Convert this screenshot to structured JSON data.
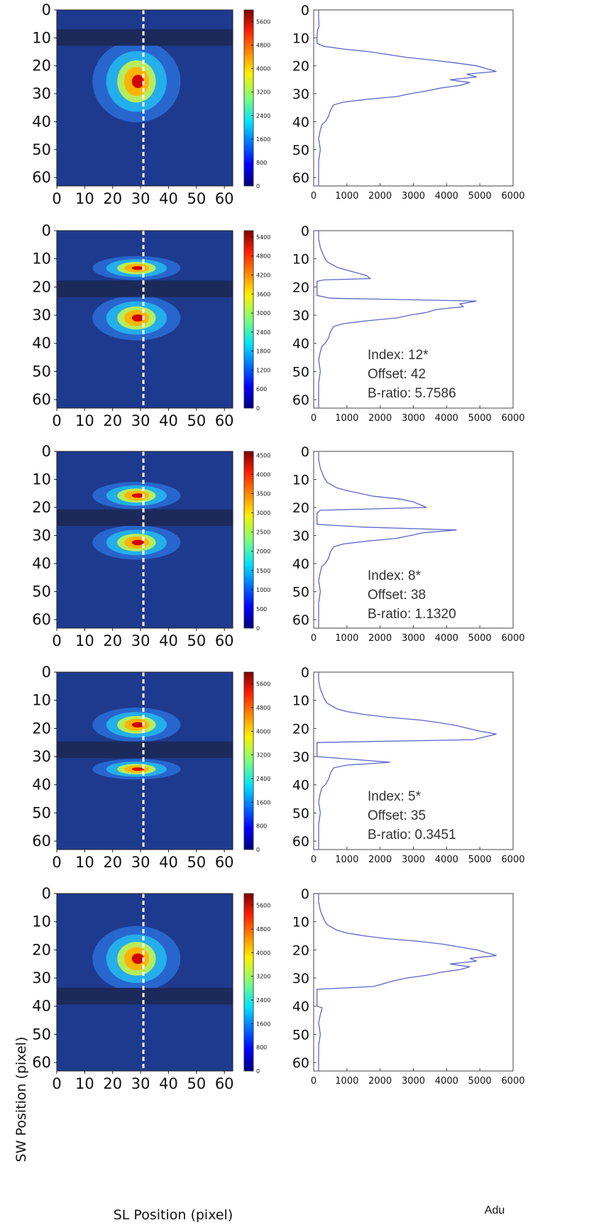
{
  "colors": {
    "background": "#1e3a8e",
    "mask": "#1b2a5a",
    "profile_line": "#5a66c8",
    "dashed_line": "#ffffff"
  },
  "labels": {
    "y_axis": "SW Position (pixel)",
    "x_axis": "SL Position (pixel)",
    "profile_x": "Adu"
  },
  "chart_data": [
    {
      "type": "heatmap",
      "title": "",
      "colormap": "jet",
      "x_range": [
        0,
        63
      ],
      "y_range": [
        0,
        63
      ],
      "x_ticks": [
        "0",
        "10",
        "20",
        "30",
        "40",
        "50",
        "60"
      ],
      "y_ticks": [
        "0",
        "10",
        "20",
        "30",
        "40",
        "50",
        "60"
      ],
      "mask_rows": [
        7,
        13
      ],
      "blob_rows": [
        [
          14,
          38
        ]
      ],
      "dashed_column": 31,
      "colorbar": {
        "max": 6000,
        "ticks": [
          "5600",
          "4800",
          "4000",
          "3200",
          "2400",
          "1600",
          "800",
          "0"
        ]
      },
      "profile": {
        "type": "line",
        "xlim": [
          0,
          6000
        ],
        "x_ticks": [
          "0",
          "1000",
          "2000",
          "3000",
          "4000",
          "5000",
          "6000"
        ],
        "y_ticks": [
          "0",
          "10",
          "20",
          "30",
          "40",
          "50",
          "60"
        ],
        "points": [
          [
            150,
            0
          ],
          [
            150,
            3
          ],
          [
            160,
            6
          ],
          [
            120,
            7
          ],
          [
            110,
            8
          ],
          [
            100,
            10
          ],
          [
            100,
            12
          ],
          [
            300,
            13
          ],
          [
            900,
            14
          ],
          [
            1700,
            15
          ],
          [
            2800,
            17
          ],
          [
            3600,
            18
          ],
          [
            4300,
            19
          ],
          [
            4900,
            20
          ],
          [
            5200,
            21
          ],
          [
            5500,
            22
          ],
          [
            4600,
            23
          ],
          [
            4900,
            24
          ],
          [
            4100,
            25
          ],
          [
            4700,
            26
          ],
          [
            4400,
            27
          ],
          [
            3800,
            28
          ],
          [
            3400,
            29
          ],
          [
            2900,
            30
          ],
          [
            2500,
            31
          ],
          [
            1600,
            32
          ],
          [
            900,
            33
          ],
          [
            600,
            34
          ],
          [
            500,
            36
          ],
          [
            450,
            38
          ],
          [
            350,
            40
          ],
          [
            250,
            41
          ],
          [
            200,
            43
          ],
          [
            150,
            46
          ],
          [
            200,
            50
          ],
          [
            150,
            54
          ],
          [
            150,
            60
          ],
          [
            150,
            63
          ]
        ],
        "annotations": []
      }
    },
    {
      "type": "heatmap",
      "title": "",
      "colormap": "jet",
      "x_range": [
        0,
        63
      ],
      "y_range": [
        0,
        63
      ],
      "x_ticks": [
        "0",
        "10",
        "20",
        "30",
        "40",
        "50",
        "60"
      ],
      "y_ticks": [
        "0",
        "10",
        "20",
        "30",
        "40",
        "50",
        "60"
      ],
      "mask_rows": [
        18,
        24
      ],
      "blob_rows": [
        [
          10,
          17
        ],
        [
          25,
          38
        ]
      ],
      "dashed_column": 31,
      "colorbar": {
        "max": 5600,
        "ticks": [
          "5400",
          "4800",
          "4200",
          "3600",
          "3000",
          "2400",
          "1800",
          "1200",
          "600",
          "0"
        ]
      },
      "profile": {
        "type": "line",
        "xlim": [
          0,
          6000
        ],
        "x_ticks": [
          "0",
          "1000",
          "2000",
          "3000",
          "4000",
          "5000",
          "6000"
        ],
        "y_ticks": [
          "0",
          "10",
          "20",
          "30",
          "40",
          "50",
          "60"
        ],
        "points": [
          [
            150,
            0
          ],
          [
            150,
            3
          ],
          [
            200,
            6
          ],
          [
            300,
            9
          ],
          [
            400,
            11
          ],
          [
            700,
            13
          ],
          [
            1000,
            14
          ],
          [
            1300,
            15
          ],
          [
            1600,
            16
          ],
          [
            1700,
            17
          ],
          [
            300,
            17.5
          ],
          [
            100,
            18
          ],
          [
            100,
            23
          ],
          [
            500,
            24
          ],
          [
            4900,
            25
          ],
          [
            4400,
            26
          ],
          [
            4500,
            27
          ],
          [
            3700,
            28
          ],
          [
            3400,
            29
          ],
          [
            2900,
            30
          ],
          [
            2500,
            31
          ],
          [
            1600,
            32
          ],
          [
            900,
            33
          ],
          [
            600,
            34
          ],
          [
            500,
            36
          ],
          [
            450,
            38
          ],
          [
            350,
            40
          ],
          [
            250,
            41
          ],
          [
            200,
            43
          ],
          [
            150,
            46
          ],
          [
            200,
            50
          ],
          [
            150,
            54
          ],
          [
            150,
            60
          ],
          [
            150,
            63
          ]
        ],
        "annotations": [
          "Index: 12*",
          "Offset: 42",
          "B-ratio: 5.7586"
        ]
      }
    },
    {
      "type": "heatmap",
      "title": "",
      "colormap": "jet",
      "x_range": [
        0,
        63
      ],
      "y_range": [
        0,
        63
      ],
      "x_ticks": [
        "0",
        "10",
        "20",
        "30",
        "40",
        "50",
        "60"
      ],
      "y_ticks": [
        "0",
        "10",
        "20",
        "30",
        "40",
        "50",
        "60"
      ],
      "mask_rows": [
        21,
        27
      ],
      "blob_rows": [
        [
          12,
          20
        ],
        [
          28,
          38
        ]
      ],
      "dashed_column": 31,
      "colorbar": {
        "max": 4600,
        "ticks": [
          "4500",
          "4000",
          "3500",
          "3000",
          "2500",
          "2000",
          "1500",
          "1000",
          "500",
          "0"
        ]
      },
      "profile": {
        "type": "line",
        "xlim": [
          0,
          6000
        ],
        "x_ticks": [
          "0",
          "1000",
          "2000",
          "3000",
          "4000",
          "5000",
          "6000"
        ],
        "y_ticks": [
          "0",
          "10",
          "20",
          "30",
          "40",
          "50",
          "60"
        ],
        "points": [
          [
            150,
            0
          ],
          [
            150,
            3
          ],
          [
            200,
            6
          ],
          [
            300,
            9
          ],
          [
            400,
            11
          ],
          [
            700,
            13
          ],
          [
            1000,
            14
          ],
          [
            1400,
            15
          ],
          [
            1800,
            16
          ],
          [
            2600,
            17
          ],
          [
            3000,
            18
          ],
          [
            3400,
            20
          ],
          [
            200,
            21
          ],
          [
            100,
            22
          ],
          [
            100,
            26
          ],
          [
            1500,
            27
          ],
          [
            4300,
            28
          ],
          [
            3300,
            29
          ],
          [
            2900,
            30
          ],
          [
            2500,
            31
          ],
          [
            1600,
            32
          ],
          [
            900,
            33
          ],
          [
            600,
            34
          ],
          [
            500,
            36
          ],
          [
            450,
            38
          ],
          [
            350,
            40
          ],
          [
            250,
            41
          ],
          [
            200,
            43
          ],
          [
            150,
            46
          ],
          [
            200,
            50
          ],
          [
            150,
            54
          ],
          [
            150,
            60
          ],
          [
            150,
            63
          ]
        ],
        "annotations": [
          "Index: 8*",
          "Offset: 38",
          "B-ratio: 1.1320"
        ]
      }
    },
    {
      "type": "heatmap",
      "title": "",
      "colormap": "jet",
      "x_range": [
        0,
        63
      ],
      "y_range": [
        0,
        63
      ],
      "x_ticks": [
        "0",
        "10",
        "20",
        "30",
        "40",
        "50",
        "60"
      ],
      "y_ticks": [
        "0",
        "10",
        "20",
        "30",
        "40",
        "50",
        "60"
      ],
      "mask_rows": [
        25,
        31
      ],
      "blob_rows": [
        [
          14,
          24
        ],
        [
          32,
          38
        ]
      ],
      "dashed_column": 31,
      "colorbar": {
        "max": 6000,
        "ticks": [
          "5600",
          "4800",
          "4000",
          "3200",
          "2400",
          "1600",
          "800",
          "0"
        ]
      },
      "profile": {
        "type": "line",
        "xlim": [
          0,
          6000
        ],
        "x_ticks": [
          "0",
          "1000",
          "2000",
          "3000",
          "4000",
          "5000",
          "6000"
        ],
        "y_ticks": [
          "0",
          "10",
          "20",
          "30",
          "40",
          "50",
          "60"
        ],
        "points": [
          [
            150,
            0
          ],
          [
            150,
            3
          ],
          [
            200,
            6
          ],
          [
            300,
            9
          ],
          [
            400,
            11
          ],
          [
            700,
            13
          ],
          [
            1000,
            14
          ],
          [
            1500,
            15
          ],
          [
            2200,
            16
          ],
          [
            3200,
            17
          ],
          [
            3800,
            18
          ],
          [
            4300,
            19
          ],
          [
            5000,
            21
          ],
          [
            5500,
            22
          ],
          [
            4800,
            24
          ],
          [
            100,
            25
          ],
          [
            100,
            30
          ],
          [
            1200,
            31
          ],
          [
            2300,
            32
          ],
          [
            1000,
            33
          ],
          [
            600,
            34
          ],
          [
            500,
            36
          ],
          [
            450,
            38
          ],
          [
            350,
            40
          ],
          [
            250,
            41
          ],
          [
            200,
            43
          ],
          [
            150,
            46
          ],
          [
            200,
            50
          ],
          [
            150,
            54
          ],
          [
            150,
            60
          ],
          [
            150,
            63
          ]
        ],
        "annotations": [
          "Index: 5*",
          "Offset: 35",
          "B-ratio: 0.3451"
        ]
      }
    },
    {
      "type": "heatmap",
      "title": "",
      "colormap": "jet",
      "x_range": [
        0,
        63
      ],
      "y_range": [
        0,
        63
      ],
      "x_ticks": [
        "0",
        "10",
        "20",
        "30",
        "40",
        "50",
        "60"
      ],
      "y_ticks": [
        "0",
        "10",
        "20",
        "30",
        "40",
        "50",
        "60"
      ],
      "mask_rows": [
        34,
        40
      ],
      "blob_rows": [
        [
          14,
          33
        ]
      ],
      "dashed_column": 31,
      "colorbar": {
        "max": 6000,
        "ticks": [
          "5600",
          "4800",
          "4000",
          "3200",
          "2400",
          "1600",
          "800",
          "0"
        ]
      },
      "profile": {
        "type": "line",
        "xlim": [
          0,
          6000
        ],
        "x_ticks": [
          "0",
          "1000",
          "2000",
          "3000",
          "4000",
          "5000",
          "6000"
        ],
        "y_ticks": [
          "0",
          "10",
          "20",
          "30",
          "40",
          "50",
          "60"
        ],
        "points": [
          [
            150,
            0
          ],
          [
            150,
            3
          ],
          [
            200,
            6
          ],
          [
            300,
            9
          ],
          [
            400,
            11
          ],
          [
            700,
            13
          ],
          [
            1000,
            14
          ],
          [
            1500,
            15
          ],
          [
            2200,
            16
          ],
          [
            3200,
            17
          ],
          [
            3900,
            18
          ],
          [
            4400,
            19
          ],
          [
            4900,
            20
          ],
          [
            5200,
            21
          ],
          [
            5500,
            22
          ],
          [
            4700,
            23
          ],
          [
            4900,
            24
          ],
          [
            4100,
            25
          ],
          [
            4700,
            26
          ],
          [
            4400,
            27
          ],
          [
            3800,
            28
          ],
          [
            3400,
            29
          ],
          [
            2800,
            30
          ],
          [
            2400,
            31
          ],
          [
            2100,
            32
          ],
          [
            1800,
            33
          ],
          [
            100,
            34
          ],
          [
            100,
            40
          ],
          [
            250,
            40.5
          ],
          [
            250,
            41
          ],
          [
            200,
            43
          ],
          [
            150,
            46
          ],
          [
            200,
            50
          ],
          [
            150,
            54
          ],
          [
            150,
            60
          ],
          [
            150,
            63
          ]
        ],
        "annotations": []
      }
    }
  ]
}
